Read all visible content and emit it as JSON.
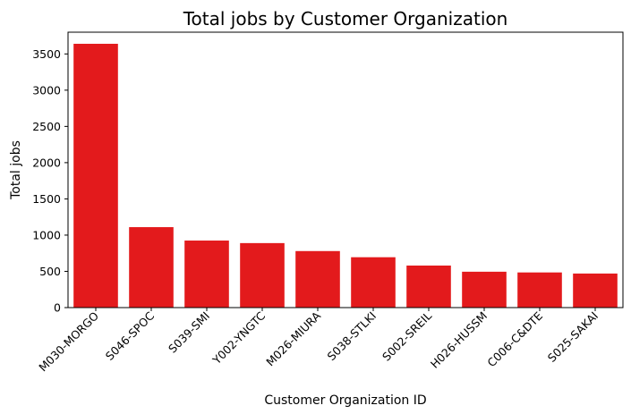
{
  "chart_data": {
    "type": "bar",
    "title": "Total jobs by Customer Organization",
    "xlabel": "Customer Organization ID",
    "ylabel": "Total jobs",
    "categories": [
      "M030-MORGO",
      "S046-SPOC",
      "S039-SMI",
      "Y002-YNGTC",
      "M026-MIURA",
      "S038-STLKI",
      "S002-SREIL",
      "H026-HUSSM",
      "C006-C&DTE",
      "S025-SAKAI"
    ],
    "values": [
      3640,
      1110,
      925,
      890,
      780,
      695,
      580,
      495,
      485,
      470
    ],
    "ylim": [
      0,
      3800
    ],
    "yticks": [
      0,
      500,
      1000,
      1500,
      2000,
      2500,
      3000,
      3500
    ],
    "bar_color": "#e31a1c",
    "grid": false,
    "legend": "none"
  }
}
